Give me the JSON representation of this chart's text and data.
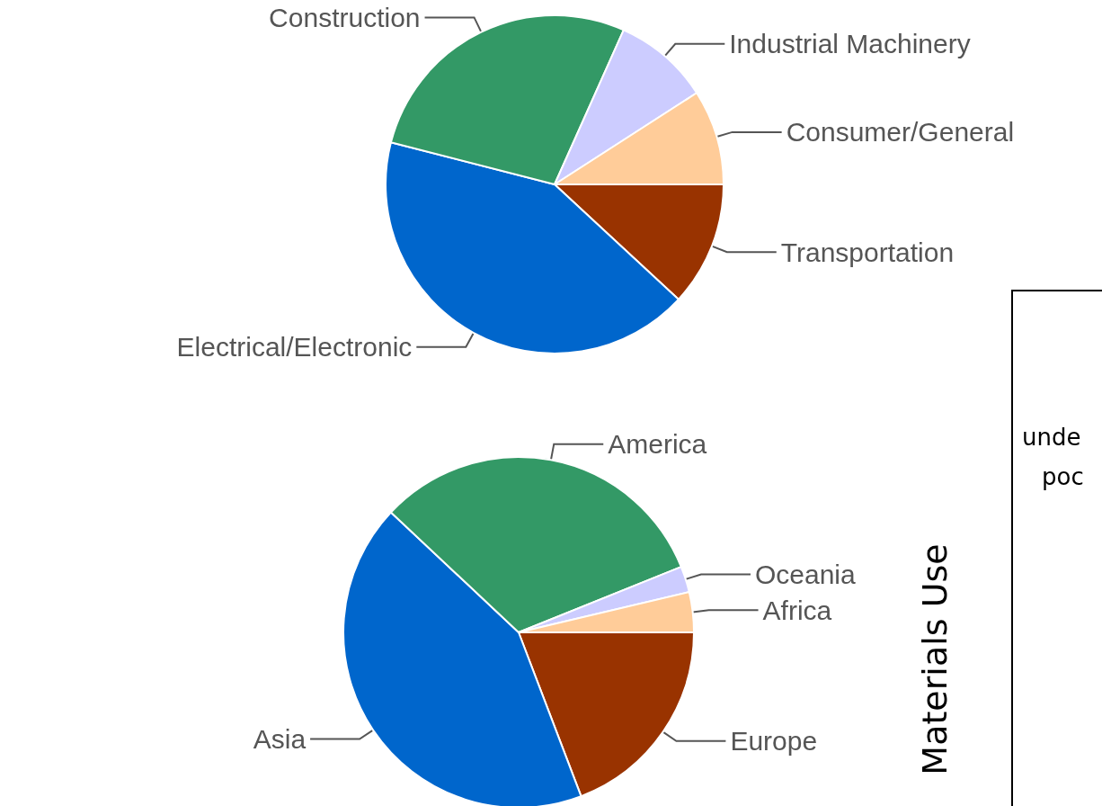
{
  "chart_data": [
    {
      "type": "pie",
      "categories": [
        "Transportation",
        "Electrical/Electronic",
        "Construction",
        "Industrial Machinery",
        "Consumer/General"
      ],
      "values": [
        11.9,
        42.1,
        27.7,
        9.2,
        9.1
      ],
      "colors": [
        "#993300",
        "#0066cc",
        "#339966",
        "#ccccff",
        "#ffcc99"
      ]
    },
    {
      "type": "pie",
      "categories": [
        "Europe",
        "Asia",
        "America",
        "Oceania",
        "Africa"
      ],
      "values": [
        19.2,
        42.8,
        31.9,
        2.4,
        3.7
      ],
      "colors": [
        "#993300",
        "#0066cc",
        "#339966",
        "#ccccff",
        "#ffcc99"
      ],
      "annotations": [
        "Materials Use"
      ]
    },
    {
      "type": "other",
      "annotations": [
        "unde",
        "poc"
      ]
    }
  ]
}
